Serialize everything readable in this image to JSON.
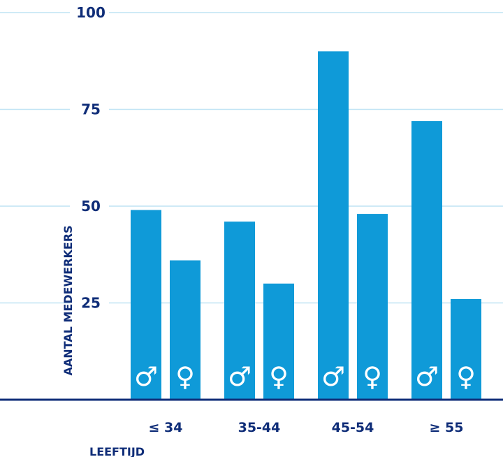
{
  "colors": {
    "bar": "#0f9ad8",
    "grid": "#bfe3f4",
    "text": "#0f2d78",
    "axis": "#0f2d78",
    "icon": "#ffffff"
  },
  "chart_data": {
    "type": "bar",
    "categories": [
      "≤ 34",
      "35-44",
      "45-54",
      "≥ 55"
    ],
    "series": [
      {
        "icon": "male-icon",
        "glyph": "♂",
        "values": [
          49,
          46,
          90,
          72
        ]
      },
      {
        "icon": "female-icon",
        "glyph": "♀",
        "values": [
          36,
          30,
          48,
          26
        ]
      }
    ],
    "yticks": [
      25,
      50,
      75,
      100
    ],
    "ylim": [
      0,
      100
    ],
    "ylabel": "AANTAL MEDEWERKERS",
    "xlabel": "LEEFTIJD",
    "grid": true
  }
}
